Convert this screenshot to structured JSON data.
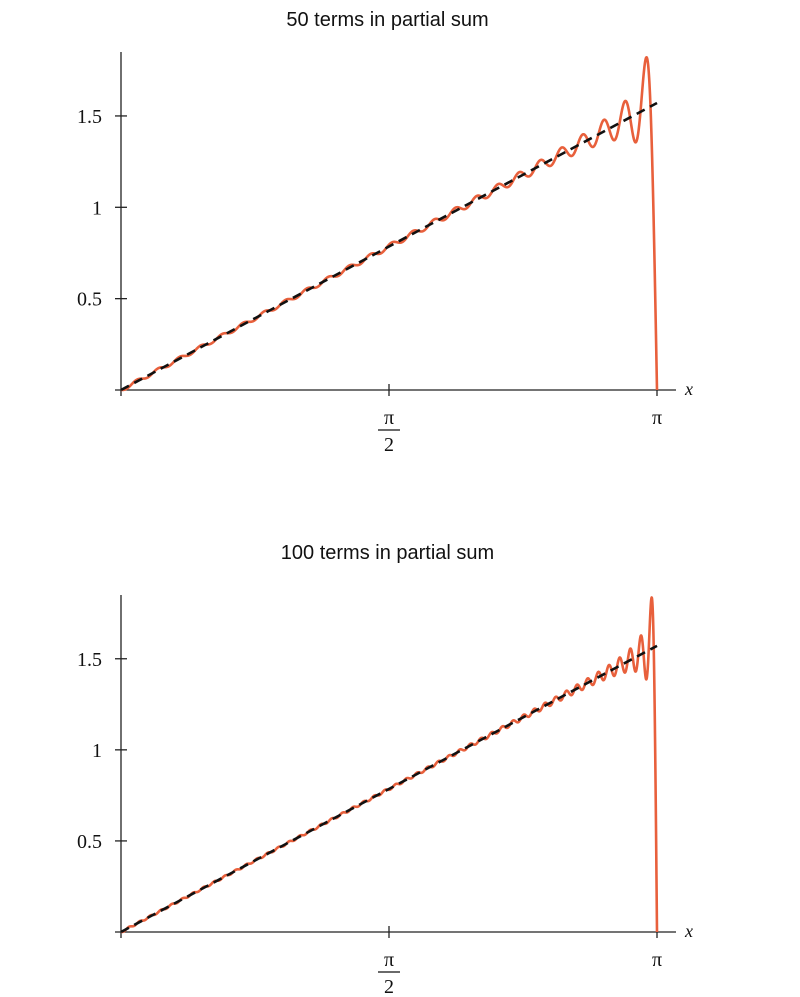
{
  "chart_data": [
    {
      "type": "line",
      "title": "50 terms in partial sum",
      "n_terms": 50,
      "xlabel": "x",
      "ylabel": "",
      "xlim": [
        0,
        3.14159
      ],
      "ylim": [
        0,
        1.85
      ],
      "x_ticks": [
        {
          "value": 1.5708,
          "numerator": "π",
          "denominator": "2"
        },
        {
          "value": 3.14159,
          "label": "π"
        }
      ],
      "y_ticks": [
        {
          "value": 0.5,
          "label": "0.5"
        },
        {
          "value": 1,
          "label": "1"
        },
        {
          "value": 1.5,
          "label": "1.5"
        }
      ],
      "grid": false,
      "series": [
        {
          "role": "target",
          "style": "dashed",
          "color": "#111111",
          "x": [
            0,
            3.14159
          ],
          "y": [
            0,
            1.5708
          ]
        },
        {
          "role": "partial-sum",
          "style": "solid",
          "color": "#e8603c",
          "x": [
            0,
            0.79,
            1.57,
            2.36,
            2.8,
            3.0,
            3.08,
            3.11,
            3.1416
          ],
          "y": [
            0,
            0.395,
            0.785,
            1.18,
            1.4,
            1.55,
            1.81,
            1.5,
            0
          ]
        }
      ]
    },
    {
      "type": "line",
      "title": "100 terms in partial sum",
      "n_terms": 100,
      "xlabel": "x",
      "ylabel": "",
      "xlim": [
        0,
        3.14159
      ],
      "ylim": [
        0,
        1.85
      ],
      "x_ticks": [
        {
          "value": 1.5708,
          "numerator": "π",
          "denominator": "2"
        },
        {
          "value": 3.14159,
          "label": "π"
        }
      ],
      "y_ticks": [
        {
          "value": 0.5,
          "label": "0.5"
        },
        {
          "value": 1,
          "label": "1"
        },
        {
          "value": 1.5,
          "label": "1.5"
        }
      ],
      "grid": false,
      "series": [
        {
          "role": "target",
          "style": "dashed",
          "color": "#111111",
          "x": [
            0,
            3.14159
          ],
          "y": [
            0,
            1.5708
          ]
        },
        {
          "role": "partial-sum",
          "style": "solid",
          "color": "#e8603c",
          "x": [
            0,
            0.79,
            1.57,
            2.36,
            2.9,
            3.07,
            3.11,
            3.126,
            3.1416
          ],
          "y": [
            0,
            0.395,
            0.785,
            1.18,
            1.45,
            1.56,
            1.82,
            1.5,
            0
          ]
        }
      ]
    }
  ]
}
